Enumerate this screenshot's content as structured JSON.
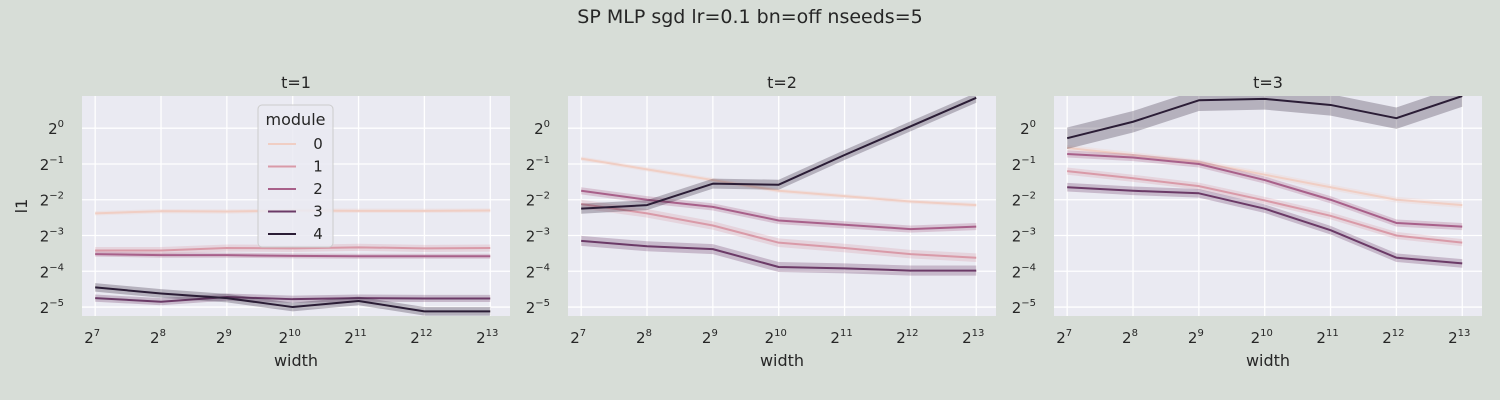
{
  "suptitle": "SP MLP sgd lr=0.1 bn=off nseeds=5",
  "colors": {
    "figure_bg": "#d7ddd7",
    "axes_bg": "#eaeaf2",
    "grid": "#ffffff",
    "palette": [
      "#f0cec4",
      "#d99aa8",
      "#a8608a",
      "#6b3a67",
      "#2b1d36"
    ]
  },
  "legend": {
    "title": "module",
    "placement": "upper center of first panel",
    "entries": [
      "0",
      "1",
      "2",
      "3",
      "4"
    ]
  },
  "chart_data": [
    {
      "type": "line",
      "title": "t=1",
      "xlabel": "width",
      "ylabel": "l1",
      "x_scale": "log2",
      "y_scale": "log2",
      "x_ticks": [
        7,
        8,
        9,
        10,
        11,
        12,
        13
      ],
      "y_ticks": [
        0,
        -1,
        -2,
        -3,
        -4,
        -5
      ],
      "xlim": [
        6.8,
        13.3
      ],
      "ylim": [
        -5.25,
        0.9
      ],
      "grid": true,
      "x": [
        7,
        8,
        9,
        10,
        11,
        12,
        13
      ],
      "series": [
        {
          "name": "0",
          "y": [
            -2.38,
            -2.32,
            -2.33,
            -2.3,
            -2.31,
            -2.31,
            -2.3
          ],
          "band": 0.06
        },
        {
          "name": "1",
          "y": [
            -3.42,
            -3.42,
            -3.35,
            -3.36,
            -3.33,
            -3.36,
            -3.35
          ],
          "band": 0.1
        },
        {
          "name": "2",
          "y": [
            -3.52,
            -3.55,
            -3.55,
            -3.57,
            -3.58,
            -3.58,
            -3.58
          ],
          "band": 0.07
        },
        {
          "name": "3",
          "y": [
            -4.75,
            -4.85,
            -4.72,
            -4.78,
            -4.75,
            -4.76,
            -4.76
          ],
          "band": 0.1
        },
        {
          "name": "4",
          "y": [
            -4.45,
            -4.62,
            -4.75,
            -5.0,
            -4.83,
            -5.12,
            -5.12
          ],
          "band": 0.12
        }
      ]
    },
    {
      "type": "line",
      "title": "t=2",
      "xlabel": "width",
      "ylabel": "",
      "x_scale": "log2",
      "y_scale": "log2",
      "x_ticks": [
        7,
        8,
        9,
        10,
        11,
        12,
        13
      ],
      "y_ticks": [
        0,
        -1,
        -2,
        -3,
        -4,
        -5
      ],
      "xlim": [
        6.8,
        13.3
      ],
      "ylim": [
        -5.25,
        0.9
      ],
      "grid": true,
      "x": [
        7,
        8,
        9,
        10,
        11,
        12,
        13
      ],
      "series": [
        {
          "name": "0",
          "y": [
            -0.85,
            -1.15,
            -1.45,
            -1.75,
            -1.9,
            -2.05,
            -2.15
          ],
          "band": 0.06
        },
        {
          "name": "1",
          "y": [
            -2.12,
            -2.38,
            -2.72,
            -3.2,
            -3.35,
            -3.52,
            -3.62
          ],
          "band": 0.12
        },
        {
          "name": "2",
          "y": [
            -1.75,
            -2.0,
            -2.2,
            -2.58,
            -2.7,
            -2.82,
            -2.75
          ],
          "band": 0.1
        },
        {
          "name": "3",
          "y": [
            -3.15,
            -3.3,
            -3.38,
            -3.88,
            -3.92,
            -3.98,
            -3.98
          ],
          "band": 0.14
        },
        {
          "name": "4",
          "y": [
            -2.25,
            -2.15,
            -1.55,
            -1.58,
            -0.75,
            0.05,
            0.85
          ],
          "band": 0.14
        }
      ]
    },
    {
      "type": "line",
      "title": "t=3",
      "xlabel": "width",
      "ylabel": "",
      "x_scale": "log2",
      "y_scale": "log2",
      "x_ticks": [
        7,
        8,
        9,
        10,
        11,
        12,
        13
      ],
      "y_ticks": [
        0,
        -1,
        -2,
        -3,
        -4,
        -5
      ],
      "xlim": [
        6.8,
        13.3
      ],
      "ylim": [
        -5.25,
        0.9
      ],
      "grid": true,
      "x": [
        7,
        8,
        9,
        10,
        11,
        12,
        13
      ],
      "series": [
        {
          "name": "0",
          "y": [
            -0.55,
            -0.75,
            -0.95,
            -1.3,
            -1.65,
            -2.0,
            -2.15
          ],
          "band": 0.08
        },
        {
          "name": "1",
          "y": [
            -1.2,
            -1.4,
            -1.62,
            -2.02,
            -2.45,
            -3.0,
            -3.2
          ],
          "band": 0.1
        },
        {
          "name": "2",
          "y": [
            -0.72,
            -0.82,
            -1.0,
            -1.45,
            -2.0,
            -2.65,
            -2.75
          ],
          "band": 0.1
        },
        {
          "name": "3",
          "y": [
            -1.65,
            -1.75,
            -1.82,
            -2.25,
            -2.85,
            -3.62,
            -3.78
          ],
          "band": 0.12
        },
        {
          "name": "4",
          "y": [
            -0.28,
            0.18,
            0.78,
            0.82,
            0.65,
            0.28,
            0.9
          ],
          "band": 0.3
        }
      ]
    }
  ]
}
